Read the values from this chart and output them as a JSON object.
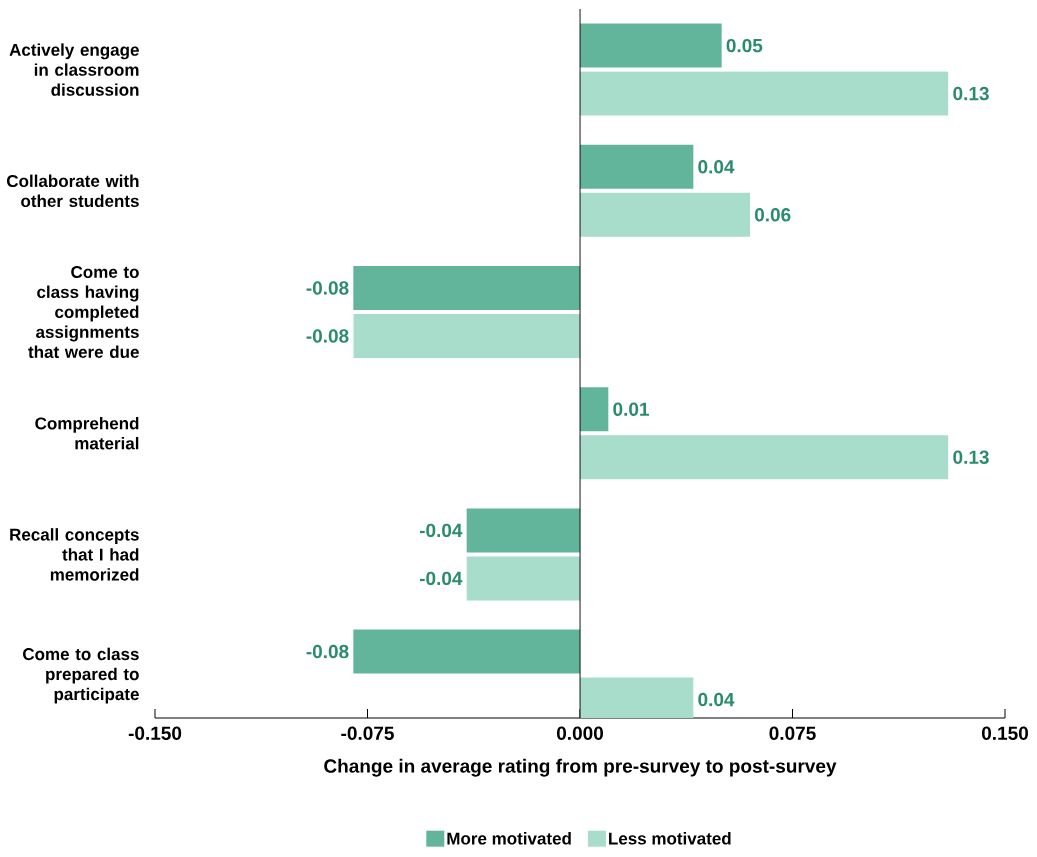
{
  "chart_data": {
    "type": "bar",
    "orientation": "horizontal",
    "xlabel": "Change in average rating from pre-survey to post-survey",
    "categories": [
      "Actively engage in classroom discussion",
      "Collaborate with other students",
      "Come to class having completed assignments that were due",
      "Comprehend material",
      "Recall concepts that I had memorized",
      "Come to class prepared to participate"
    ],
    "series": [
      {
        "name": "More motivated",
        "color": "#62b59a",
        "values": [
          0.05,
          0.04,
          -0.08,
          0.01,
          -0.04,
          -0.08
        ]
      },
      {
        "name": "Less motivated",
        "color": "#a8dccb",
        "values": [
          0.13,
          0.06,
          -0.08,
          0.13,
          -0.04,
          0.04
        ]
      }
    ],
    "xlim": [
      -0.15,
      0.15
    ],
    "xticks": [
      {
        "value": -0.15,
        "label": "-0.150"
      },
      {
        "value": -0.075,
        "label": "-0.075"
      },
      {
        "value": 0,
        "label": "0.000"
      },
      {
        "value": 0.075,
        "label": "0.075"
      },
      {
        "value": 0.15,
        "label": "0.150"
      }
    ],
    "data_labels": true,
    "ref_lines": [
      {
        "axis": "x",
        "value": 0,
        "color": "#000000"
      }
    ],
    "legend": "bottom",
    "grid": false
  }
}
